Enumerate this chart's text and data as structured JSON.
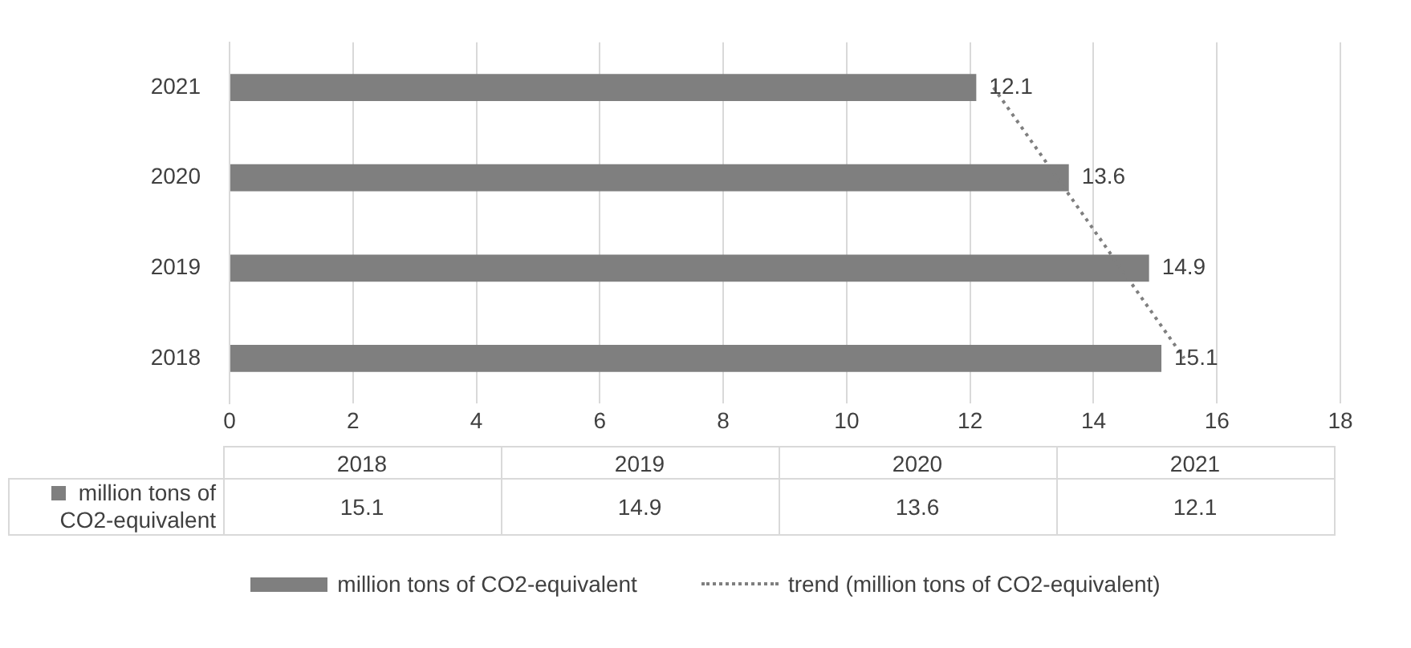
{
  "chart_data": {
    "type": "bar",
    "orientation": "horizontal",
    "categories": [
      "2021",
      "2020",
      "2019",
      "2018"
    ],
    "series": [
      {
        "name": "million tons of CO2-equivalent",
        "color": "#7f7f7f",
        "values": [
          12.1,
          13.6,
          14.9,
          15.1
        ],
        "value_labels": [
          "12.1",
          "13.6",
          "14.9",
          "15.1"
        ]
      },
      {
        "name": "trend (million tons of CO2-equivalent)",
        "type": "line",
        "line_style": "dotted",
        "color": "#7f7f7f",
        "values": [
          12.38,
          13.41,
          14.44,
          15.47
        ]
      }
    ],
    "xlim": [
      0,
      18
    ],
    "xticks": [
      0,
      2,
      4,
      6,
      8,
      10,
      12,
      14,
      16,
      18
    ],
    "grid": "x",
    "legend": "bottom",
    "marker": "none"
  }
}
